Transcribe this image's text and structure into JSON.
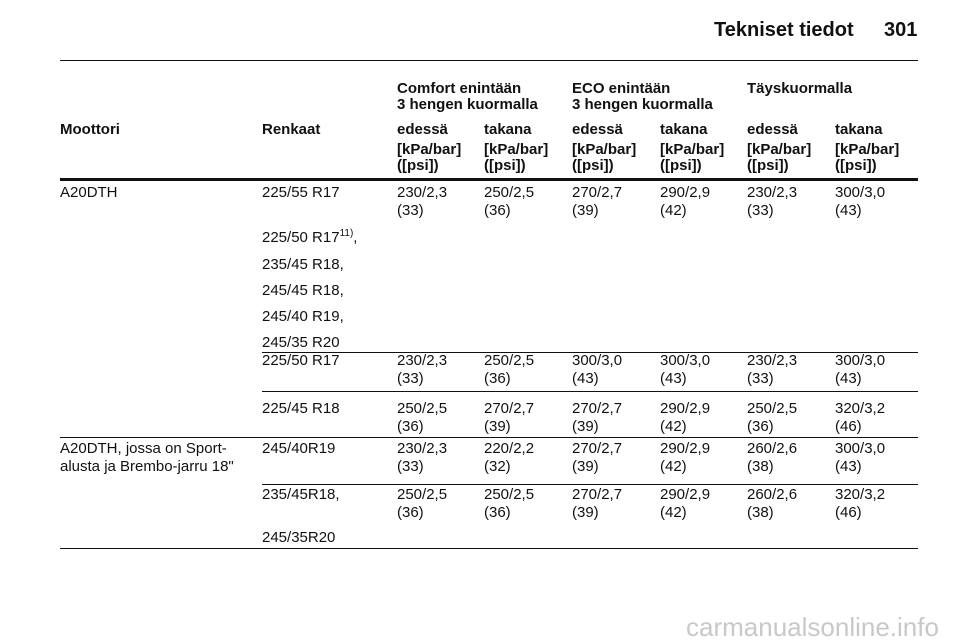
{
  "header": {
    "title": "Tekniset tiedot",
    "page": "301"
  },
  "table": {
    "group_headers": [
      [
        "Comfort enintään",
        "3 hengen kuormalla"
      ],
      [
        "ECO enintään",
        "3 hengen kuormalla"
      ],
      [
        "Täyskuormalla"
      ]
    ],
    "columns": [
      "Moottori",
      "Renkaat",
      "edessä",
      "takana",
      "edessä",
      "takana",
      "edessä",
      "takana"
    ],
    "units": [
      [
        "[kPa/bar]",
        "([psi])"
      ],
      [
        "[kPa/bar]",
        "([psi])"
      ],
      [
        "[kPa/bar]",
        "([psi])"
      ],
      [
        "[kPa/bar]",
        "([psi])"
      ],
      [
        "[kPa/bar]",
        "([psi])"
      ],
      [
        "[kPa/bar]",
        "([psi])"
      ]
    ],
    "groups": [
      {
        "engine": [
          "A20DTH"
        ],
        "subrows": [
          {
            "tires": [
              "225/55 R17"
            ],
            "values": [
              [
                "230/2,3",
                "(33)"
              ],
              [
                "250/2,5",
                "(36)"
              ],
              [
                "270/2,7",
                "(39)"
              ],
              [
                "290/2,9",
                "(42)"
              ],
              [
                "230/2,3",
                "(33)"
              ],
              [
                "300/3,0",
                "(43)"
              ]
            ]
          },
          {
            "tires": [
              {
                "text": "225/50 R17",
                "note": "11)",
                "suffix": ","
              },
              "235/45 R18,",
              "245/45 R18,",
              "245/40 R19,",
              "245/35 R20"
            ],
            "values": []
          },
          {
            "tires": [
              "225/50 R17"
            ],
            "values": [
              [
                "230/2,3",
                "(33)"
              ],
              [
                "250/2,5",
                "(36)"
              ],
              [
                "300/3,0",
                "(43)"
              ],
              [
                "300/3,0",
                "(43)"
              ],
              [
                "230/2,3",
                "(33)"
              ],
              [
                "300/3,0",
                "(43)"
              ]
            ]
          },
          {
            "tires": [
              "225/45 R18"
            ],
            "values": [
              [
                "250/2,5",
                "(36)"
              ],
              [
                "270/2,7",
                "(39)"
              ],
              [
                "270/2,7",
                "(39)"
              ],
              [
                "290/2,9",
                "(42)"
              ],
              [
                "250/2,5",
                "(36)"
              ],
              [
                "320/3,2",
                "(46)"
              ]
            ]
          }
        ]
      },
      {
        "engine": [
          "A20DTH, jossa on Sport-",
          "alusta ja Brembo-jarru 18\""
        ],
        "subrows": [
          {
            "tires": [
              "245/40R19"
            ],
            "values": [
              [
                "230/2,3",
                "(33)"
              ],
              [
                "220/2,2",
                "(32)"
              ],
              [
                "270/2,7",
                "(39)"
              ],
              [
                "290/2,9",
                "(42)"
              ],
              [
                "260/2,6",
                "(38)"
              ],
              [
                "300/3,0",
                "(43)"
              ]
            ]
          },
          {
            "tires": [
              "235/45R18,",
              "245/35R20"
            ],
            "values": [
              [
                "250/2,5",
                "(36)"
              ],
              [
                "250/2,5",
                "(36)"
              ],
              [
                "270/2,7",
                "(39)"
              ],
              [
                "290/2,9",
                "(42)"
              ],
              [
                "260/2,6",
                "(38)"
              ],
              [
                "320/3,2",
                "(46)"
              ]
            ]
          }
        ]
      }
    ]
  },
  "watermark": "carmanualsonline.info"
}
